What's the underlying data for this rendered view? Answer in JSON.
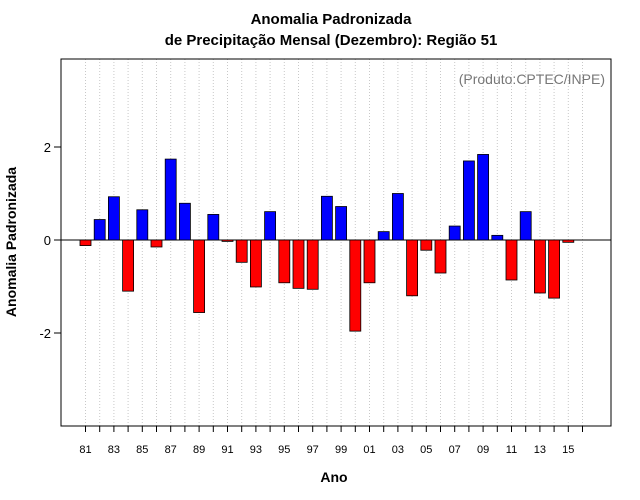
{
  "chart_data": {
    "type": "bar",
    "title_line1": "Anomalia Padronizada",
    "title_line2": "de Precipitação Mensal (Dezembro): Região 51",
    "credit": "(Produto:CPTEC/INPE)",
    "xlabel": "Ano",
    "ylabel": "Anomalia Padronizada",
    "ylim": [
      -4,
      4
    ],
    "yticks": [
      -2,
      0,
      2
    ],
    "ytick_labels": [
      "-2",
      "0",
      "2"
    ],
    "grid": true,
    "years": [
      1981,
      1982,
      1983,
      1984,
      1985,
      1986,
      1987,
      1988,
      1989,
      1990,
      1991,
      1992,
      1993,
      1994,
      1995,
      1996,
      1997,
      1998,
      1999,
      2000,
      2001,
      2002,
      2003,
      2004,
      2005,
      2006,
      2007,
      2008,
      2009,
      2010,
      2011,
      2012,
      2013,
      2014,
      2015
    ],
    "values": [
      -0.12,
      0.44,
      0.93,
      -1.1,
      0.65,
      -0.15,
      1.74,
      0.79,
      -1.56,
      0.55,
      -0.03,
      -0.48,
      -1.01,
      0.61,
      -0.92,
      -1.04,
      -1.06,
      0.94,
      0.72,
      -1.96,
      -0.92,
      0.18,
      1.0,
      -1.2,
      -0.22,
      -0.71,
      0.3,
      1.7,
      1.84,
      0.1,
      -0.86,
      0.61,
      -1.14,
      -1.25,
      -0.05
    ],
    "xtick_labels": [
      "81",
      "83",
      "85",
      "87",
      "89",
      "91",
      "93",
      "95",
      "97",
      "99",
      "01",
      "03",
      "05",
      "07",
      "09",
      "11",
      "13",
      "15"
    ],
    "colors": {
      "positive": "#0000ff",
      "negative": "#ff0000",
      "axis": "#000000",
      "grid": "#c8c8c8",
      "credit": "#777777"
    }
  }
}
